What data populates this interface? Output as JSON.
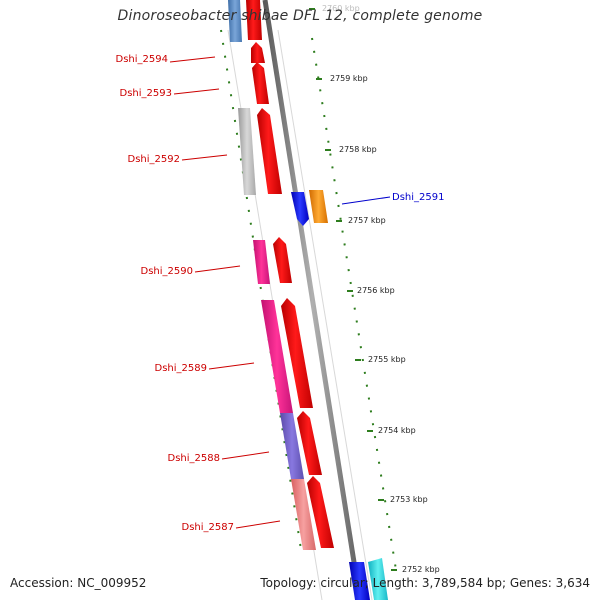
{
  "title": "Dinoroseobacter shibae DFL 12, complete genome",
  "footer": {
    "accession": "Accession: NC_009952",
    "topology": "Topology: circular; Length: 3,789,584 bp; Genes: 3,634"
  },
  "colors": {
    "backbone": "#8a8a8a",
    "scale": "#2e7d1e",
    "label_red": "#cc0000",
    "label_blue": "#0000cc"
  },
  "ticks": [
    {
      "label": "2760 kbp"
    },
    {
      "label": "2759 kbp"
    },
    {
      "label": "2758 kbp"
    },
    {
      "label": "2757 kbp"
    },
    {
      "label": "2756 kbp"
    },
    {
      "label": "2755 kbp"
    },
    {
      "label": "2754 kbp"
    },
    {
      "label": "2753 kbp"
    },
    {
      "label": "2752 kbp"
    }
  ],
  "gene_labels": [
    {
      "name": "Dshi_2594",
      "color": "red"
    },
    {
      "name": "Dshi_2593",
      "color": "red"
    },
    {
      "name": "Dshi_2592",
      "color": "red"
    },
    {
      "name": "Dshi_2591",
      "color": "blue"
    },
    {
      "name": "Dshi_2590",
      "color": "red"
    },
    {
      "name": "Dshi_2589",
      "color": "red"
    },
    {
      "name": "Dshi_2588",
      "color": "red"
    },
    {
      "name": "Dshi_2587",
      "color": "red"
    }
  ]
}
